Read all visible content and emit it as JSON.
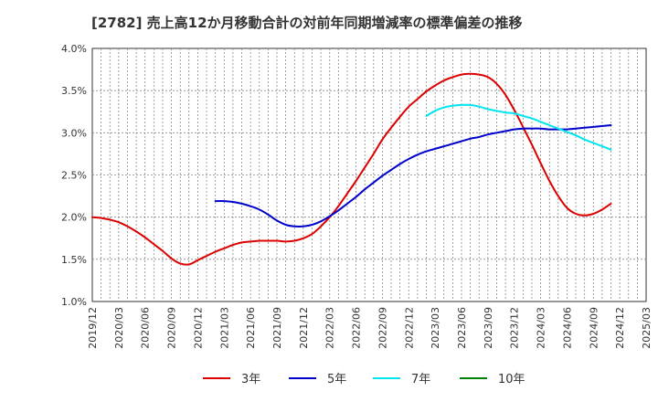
{
  "chart_data": {
    "type": "line",
    "title": "[2782]  売上高12か月移動合計の対前年同期増減率の標準偏差の推移",
    "xlabel": "",
    "ylabel": "",
    "ylim": [
      0.01,
      0.04
    ],
    "yticks": [
      "1.0%",
      "1.5%",
      "2.0%",
      "2.5%",
      "3.0%",
      "3.5%",
      "4.0%"
    ],
    "yticks_values": [
      0.01,
      0.015,
      0.02,
      0.025,
      0.03,
      0.035,
      0.04
    ],
    "x": [
      "2019/12",
      "2020/03",
      "2020/06",
      "2020/09",
      "2020/12",
      "2021/03",
      "2021/06",
      "2021/09",
      "2021/12",
      "2022/03",
      "2022/06",
      "2022/09",
      "2022/12",
      "2023/03",
      "2023/06",
      "2023/09",
      "2023/12",
      "2024/03",
      "2024/06",
      "2024/09",
      "2024/12",
      "2025/03"
    ],
    "grid": true,
    "legend_position": "bottom",
    "series": [
      {
        "name": "3年",
        "color": "#dd0000",
        "points": [
          [
            "2019/12",
            0.02
          ],
          [
            "2020/01",
            0.0199
          ],
          [
            "2020/02",
            0.0197
          ],
          [
            "2020/03",
            0.0194
          ],
          [
            "2020/04",
            0.0189
          ],
          [
            "2020/05",
            0.0183
          ],
          [
            "2020/06",
            0.0176
          ],
          [
            "2020/07",
            0.0168
          ],
          [
            "2020/08",
            0.016
          ],
          [
            "2020/09",
            0.0151
          ],
          [
            "2020/10",
            0.0145
          ],
          [
            "2020/11",
            0.0144
          ],
          [
            "2020/12",
            0.0149
          ],
          [
            "2021/01",
            0.0154
          ],
          [
            "2021/02",
            0.0159
          ],
          [
            "2021/03",
            0.0163
          ],
          [
            "2021/04",
            0.0167
          ],
          [
            "2021/05",
            0.017
          ],
          [
            "2021/06",
            0.0171
          ],
          [
            "2021/07",
            0.0172
          ],
          [
            "2021/08",
            0.0172
          ],
          [
            "2021/09",
            0.0172
          ],
          [
            "2021/10",
            0.0171
          ],
          [
            "2021/11",
            0.0172
          ],
          [
            "2021/12",
            0.0175
          ],
          [
            "2022/01",
            0.018
          ],
          [
            "2022/02",
            0.0189
          ],
          [
            "2022/03",
            0.02
          ],
          [
            "2022/04",
            0.0213
          ],
          [
            "2022/05",
            0.0228
          ],
          [
            "2022/06",
            0.0243
          ],
          [
            "2022/07",
            0.0259
          ],
          [
            "2022/08",
            0.0275
          ],
          [
            "2022/09",
            0.0292
          ],
          [
            "2022/10",
            0.0306
          ],
          [
            "2022/11",
            0.0319
          ],
          [
            "2022/12",
            0.0331
          ],
          [
            "2023/01",
            0.034
          ],
          [
            "2023/02",
            0.0349
          ],
          [
            "2023/03",
            0.0356
          ],
          [
            "2023/04",
            0.0362
          ],
          [
            "2023/05",
            0.0366
          ],
          [
            "2023/06",
            0.0369
          ],
          [
            "2023/07",
            0.037
          ],
          [
            "2023/08",
            0.0369
          ],
          [
            "2023/09",
            0.0366
          ],
          [
            "2023/10",
            0.0358
          ],
          [
            "2023/11",
            0.0345
          ],
          [
            "2023/12",
            0.0327
          ],
          [
            "2024/01",
            0.0307
          ],
          [
            "2024/02",
            0.0286
          ],
          [
            "2024/03",
            0.0264
          ],
          [
            "2024/04",
            0.0243
          ],
          [
            "2024/05",
            0.0225
          ],
          [
            "2024/06",
            0.0211
          ],
          [
            "2024/07",
            0.0204
          ],
          [
            "2024/08",
            0.0202
          ],
          [
            "2024/09",
            0.0204
          ],
          [
            "2024/10",
            0.0209
          ],
          [
            "2024/11",
            0.0216
          ]
        ]
      },
      {
        "name": "5年",
        "color": "#0000cc",
        "points": [
          [
            "2021/02",
            0.0219
          ],
          [
            "2021/03",
            0.0219
          ],
          [
            "2021/04",
            0.0218
          ],
          [
            "2021/05",
            0.0216
          ],
          [
            "2021/06",
            0.0213
          ],
          [
            "2021/07",
            0.0209
          ],
          [
            "2021/08",
            0.0203
          ],
          [
            "2021/09",
            0.0196
          ],
          [
            "2021/10",
            0.0191
          ],
          [
            "2021/11",
            0.0189
          ],
          [
            "2021/12",
            0.0189
          ],
          [
            "2022/01",
            0.0191
          ],
          [
            "2022/02",
            0.0195
          ],
          [
            "2022/03",
            0.0201
          ],
          [
            "2022/04",
            0.0208
          ],
          [
            "2022/05",
            0.0216
          ],
          [
            "2022/06",
            0.0224
          ],
          [
            "2022/07",
            0.0233
          ],
          [
            "2022/08",
            0.0241
          ],
          [
            "2022/09",
            0.0249
          ],
          [
            "2022/10",
            0.0256
          ],
          [
            "2022/11",
            0.0263
          ],
          [
            "2022/12",
            0.0269
          ],
          [
            "2023/01",
            0.0274
          ],
          [
            "2023/02",
            0.0278
          ],
          [
            "2023/03",
            0.0281
          ],
          [
            "2023/04",
            0.0284
          ],
          [
            "2023/05",
            0.0287
          ],
          [
            "2023/06",
            0.029
          ],
          [
            "2023/07",
            0.0293
          ],
          [
            "2023/08",
            0.0295
          ],
          [
            "2023/09",
            0.0298
          ],
          [
            "2023/10",
            0.03
          ],
          [
            "2023/11",
            0.0302
          ],
          [
            "2023/12",
            0.0304
          ],
          [
            "2024/01",
            0.0305
          ],
          [
            "2024/02",
            0.0305
          ],
          [
            "2024/03",
            0.0305
          ],
          [
            "2024/04",
            0.0304
          ],
          [
            "2024/05",
            0.0304
          ],
          [
            "2024/06",
            0.0304
          ],
          [
            "2024/07",
            0.0305
          ],
          [
            "2024/08",
            0.0306
          ],
          [
            "2024/09",
            0.0307
          ],
          [
            "2024/10",
            0.0308
          ],
          [
            "2024/11",
            0.0309
          ]
        ]
      },
      {
        "name": "7年",
        "color": "#00e5ee",
        "points": [
          [
            "2023/02",
            0.032
          ],
          [
            "2023/03",
            0.0326
          ],
          [
            "2023/04",
            0.033
          ],
          [
            "2023/05",
            0.0332
          ],
          [
            "2023/06",
            0.0333
          ],
          [
            "2023/07",
            0.0333
          ],
          [
            "2023/08",
            0.0331
          ],
          [
            "2023/09",
            0.0328
          ],
          [
            "2023/10",
            0.0326
          ],
          [
            "2023/11",
            0.0324
          ],
          [
            "2023/12",
            0.0323
          ],
          [
            "2024/01",
            0.032
          ],
          [
            "2024/02",
            0.0317
          ],
          [
            "2024/03",
            0.0313
          ],
          [
            "2024/04",
            0.0309
          ],
          [
            "2024/05",
            0.0305
          ],
          [
            "2024/06",
            0.0301
          ],
          [
            "2024/07",
            0.0297
          ],
          [
            "2024/08",
            0.0292
          ],
          [
            "2024/09",
            0.0288
          ],
          [
            "2024/10",
            0.0284
          ],
          [
            "2024/11",
            0.028
          ]
        ]
      },
      {
        "name": "10年",
        "color": "#008000",
        "points": []
      }
    ]
  }
}
